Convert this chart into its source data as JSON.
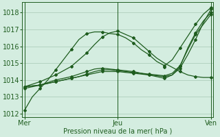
{
  "background_color": "#d4ede0",
  "grid_color": "#aecfbc",
  "line_color": "#1e5c1e",
  "title": "Pression niveau de la mer( hPa )",
  "xtick_labels": [
    "Mer",
    "Jeu",
    "Ven"
  ],
  "xtick_positions": [
    0,
    12,
    24
  ],
  "ylim": [
    1011.8,
    1018.6
  ],
  "yticks": [
    1012,
    1013,
    1014,
    1015,
    1016,
    1017,
    1018
  ],
  "xlim": [
    -0.3,
    24.3
  ],
  "lines": [
    {
      "x": [
        0,
        0.5,
        1,
        2,
        3,
        4,
        5,
        6,
        7,
        8,
        9,
        10,
        11,
        12,
        13,
        14,
        15,
        16,
        17,
        18,
        19,
        20,
        21,
        22,
        23,
        24
      ],
      "y": [
        1012.2,
        1012.6,
        1013.0,
        1013.5,
        1014.0,
        1014.6,
        1015.2,
        1015.8,
        1016.4,
        1016.75,
        1016.85,
        1016.85,
        1016.75,
        1016.7,
        1016.5,
        1016.2,
        1015.8,
        1015.5,
        1015.1,
        1014.85,
        1015.2,
        1015.9,
        1016.6,
        1017.3,
        1017.9,
        1018.3
      ],
      "marker_x": [
        0,
        2,
        4,
        6,
        8,
        10,
        12,
        14,
        16,
        18,
        20,
        22,
        24
      ],
      "marker_y": [
        1012.2,
        1013.5,
        1014.6,
        1015.8,
        1016.75,
        1016.85,
        1016.7,
        1016.2,
        1015.5,
        1014.85,
        1015.9,
        1017.3,
        1018.3
      ]
    },
    {
      "x": [
        0,
        1,
        2,
        3,
        4,
        5,
        6,
        7,
        8,
        9,
        10,
        11,
        12,
        13,
        14,
        15,
        16,
        17,
        18,
        19,
        20,
        21,
        22,
        23,
        24
      ],
      "y": [
        1013.6,
        1013.75,
        1013.9,
        1014.1,
        1014.3,
        1014.55,
        1014.8,
        1015.2,
        1015.6,
        1016.1,
        1016.55,
        1016.8,
        1016.9,
        1016.7,
        1016.5,
        1016.1,
        1015.7,
        1015.3,
        1015.0,
        1014.75,
        1014.5,
        1014.3,
        1014.2,
        1014.15,
        1014.15
      ],
      "marker_x": [
        0,
        2,
        4,
        6,
        8,
        10,
        12,
        14,
        16,
        18,
        20,
        22,
        24
      ],
      "marker_y": [
        1013.6,
        1013.9,
        1014.3,
        1014.8,
        1015.6,
        1016.55,
        1016.9,
        1016.5,
        1015.7,
        1014.75,
        1014.5,
        1014.2,
        1014.15
      ]
    },
    {
      "x": [
        0,
        1,
        2,
        3,
        4,
        5,
        6,
        7,
        8,
        9,
        10,
        11,
        12,
        13,
        14,
        15,
        16,
        17,
        18,
        19,
        20,
        21,
        22,
        23,
        24
      ],
      "y": [
        1013.6,
        1013.65,
        1013.7,
        1013.8,
        1013.9,
        1014.0,
        1014.1,
        1014.2,
        1014.3,
        1014.4,
        1014.5,
        1014.5,
        1014.5,
        1014.45,
        1014.4,
        1014.35,
        1014.3,
        1014.25,
        1014.2,
        1014.3,
        1014.7,
        1015.5,
        1016.4,
        1017.4,
        1018.2
      ],
      "marker_x": [
        0,
        2,
        4,
        6,
        8,
        10,
        12,
        14,
        16,
        18,
        20,
        22,
        24
      ],
      "marker_y": [
        1013.6,
        1013.7,
        1013.9,
        1014.1,
        1014.3,
        1014.5,
        1014.5,
        1014.4,
        1014.3,
        1014.2,
        1014.7,
        1016.4,
        1018.2
      ]
    },
    {
      "x": [
        0,
        1,
        2,
        3,
        4,
        5,
        6,
        7,
        8,
        9,
        10,
        11,
        12,
        13,
        14,
        15,
        16,
        17,
        18,
        19,
        20,
        21,
        22,
        23,
        24
      ],
      "y": [
        1013.6,
        1013.65,
        1013.7,
        1013.8,
        1013.9,
        1014.0,
        1014.1,
        1014.2,
        1014.35,
        1014.5,
        1014.6,
        1014.6,
        1014.55,
        1014.5,
        1014.45,
        1014.4,
        1014.35,
        1014.3,
        1014.25,
        1014.4,
        1014.85,
        1015.8,
        1016.7,
        1017.3,
        1017.9
      ],
      "marker_x": [
        0,
        2,
        4,
        6,
        8,
        10,
        12,
        14,
        16,
        18,
        20,
        22,
        24
      ],
      "marker_y": [
        1013.6,
        1013.7,
        1013.9,
        1014.1,
        1014.35,
        1014.6,
        1014.55,
        1014.45,
        1014.35,
        1014.25,
        1014.85,
        1016.7,
        1017.9
      ]
    },
    {
      "x": [
        0,
        1,
        2,
        3,
        4,
        5,
        6,
        7,
        8,
        9,
        10,
        11,
        12,
        13,
        14,
        15,
        16,
        17,
        18,
        19,
        20,
        21,
        22,
        23,
        24
      ],
      "y": [
        1013.5,
        1013.6,
        1013.7,
        1013.85,
        1014.0,
        1014.1,
        1014.2,
        1014.35,
        1014.5,
        1014.65,
        1014.7,
        1014.65,
        1014.6,
        1014.55,
        1014.5,
        1014.4,
        1014.3,
        1014.2,
        1014.1,
        1014.3,
        1014.8,
        1015.9,
        1016.8,
        1017.5,
        1018.0
      ],
      "marker_x": [
        0,
        2,
        4,
        6,
        8,
        10,
        12,
        14,
        16,
        18,
        20,
        22,
        24
      ],
      "marker_y": [
        1013.5,
        1013.7,
        1014.0,
        1014.2,
        1014.5,
        1014.7,
        1014.6,
        1014.5,
        1014.3,
        1014.1,
        1014.8,
        1016.8,
        1018.0
      ]
    }
  ]
}
